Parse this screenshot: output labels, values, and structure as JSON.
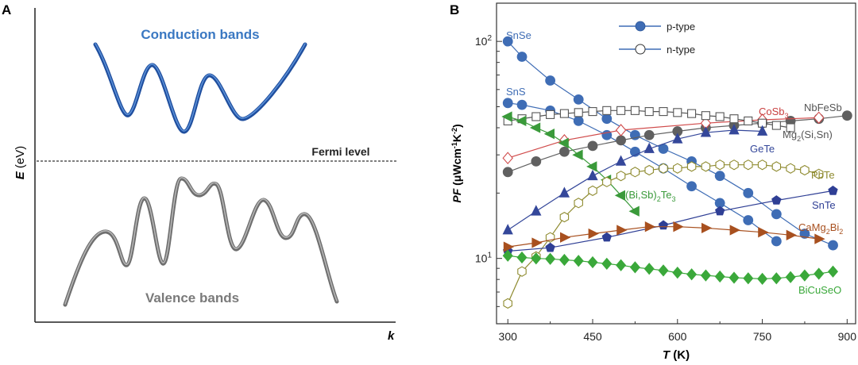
{
  "panel_a": {
    "label": "A",
    "conduction_label": "Conduction bands",
    "valence_label": "Valence bands",
    "fermi_label": "Fermi level",
    "y_axis_label_main": "E",
    "y_axis_label_unit": " (eV)",
    "x_axis_label": "k",
    "colors": {
      "conduction": "#1f4e9e",
      "conduction_light": "#5a8fd6",
      "valence": "#6e6e6e",
      "valence_light": "#a9a9a9"
    }
  },
  "panel_b": {
    "label": "B",
    "legend": {
      "p_type": "p-type",
      "n_type": "n-type"
    }
  },
  "chart_data": {
    "type": "line",
    "xlabel": "T (K)",
    "ylabel": "PF (μWcm⁻¹K⁻²)",
    "xlim": [
      280,
      915
    ],
    "ylim": [
      5,
      150
    ],
    "yscale": "log",
    "xticks": [
      300,
      450,
      600,
      750,
      900
    ],
    "yticks": [
      {
        "value": 10,
        "label": "10",
        "sup": "1"
      },
      {
        "value": 100,
        "label": "10",
        "sup": "2"
      }
    ],
    "grid": false,
    "legend_position": "top-center",
    "series": [
      {
        "name": "SnSe",
        "carrier": "p",
        "marker": "circle",
        "color": "#3f6db5",
        "label_color": "#3f6db5",
        "x": [
          300,
          325,
          375,
          425,
          475,
          525,
          575,
          625,
          675,
          725,
          775,
          825,
          875
        ],
        "y": [
          100,
          85,
          66,
          54,
          44,
          37,
          32,
          28,
          24,
          20,
          16,
          13,
          11.5
        ]
      },
      {
        "name": "SnS",
        "carrier": "p",
        "marker": "circle",
        "color": "#3f6db5",
        "label_color": "#3f6db5",
        "x": [
          300,
          325,
          375,
          425,
          475,
          525,
          575,
          625,
          675,
          725,
          775
        ],
        "y": [
          52,
          51,
          48,
          43,
          37,
          31,
          26,
          21.5,
          18,
          15,
          12
        ]
      },
      {
        "name": "NbFeSb",
        "carrier": "p",
        "marker": "circle",
        "color": "#606060",
        "label_color": "#555555",
        "x": [
          300,
          350,
          400,
          450,
          500,
          550,
          600,
          650,
          700,
          750,
          800,
          850,
          900
        ],
        "y": [
          25,
          28,
          31,
          33,
          35,
          37,
          38.5,
          40,
          41,
          42,
          43,
          44,
          45.5
        ]
      },
      {
        "name": "CoSb3",
        "carrier": "n",
        "marker": "diamond",
        "color": "#d04a4a",
        "label_color": "#c94040",
        "label_base": "CoSb",
        "label_sub": "3",
        "x": [
          300,
          400,
          500,
          650,
          750,
          850
        ],
        "y": [
          29,
          35,
          39,
          42,
          43.5,
          44.5
        ]
      },
      {
        "name": "Mg2(Si,Sn)",
        "carrier": "n",
        "marker": "square",
        "color": "#555555",
        "label_color": "#555555",
        "label_base": "Mg",
        "label_sub": "2",
        "label_rest": "(Si,Sn)",
        "x": [
          300,
          325,
          350,
          375,
          400,
          425,
          450,
          475,
          500,
          525,
          550,
          575,
          600,
          625,
          650,
          675,
          700,
          725,
          750,
          775,
          800
        ],
        "y": [
          43,
          44,
          45,
          46,
          46.5,
          47,
          47.5,
          48,
          48,
          48,
          47.5,
          47.5,
          47,
          46.5,
          45.5,
          45,
          44,
          43,
          42,
          41,
          40
        ]
      },
      {
        "name": "GeTe",
        "carrier": "p",
        "marker": "triangle-up",
        "color": "#34479a",
        "label_color": "#34479a",
        "x": [
          300,
          350,
          400,
          450,
          500,
          550,
          600,
          650,
          700,
          750
        ],
        "y": [
          13.5,
          16.5,
          20,
          24,
          28,
          32,
          35.5,
          38,
          39,
          38.5
        ]
      },
      {
        "name": "(Bi,Sb)2Te3",
        "carrier": "p",
        "marker": "triangle-left",
        "color": "#3a9a3a",
        "label_color": "#3a9a3a",
        "label_base": "(Bi,Sb)",
        "label_sub": "2",
        "label_rest": "Te",
        "label_sub2": "3",
        "x": [
          300,
          325,
          350,
          375,
          400,
          425,
          450,
          475,
          500,
          525
        ],
        "y": [
          45,
          43,
          40,
          37.5,
          34,
          30,
          26.5,
          23,
          19.5,
          16.5
        ]
      },
      {
        "name": "PbTe",
        "carrier": "n",
        "marker": "hexagon",
        "color": "#8e8a2e",
        "label_color": "#8e8a2e",
        "x": [
          300,
          325,
          350,
          375,
          400,
          425,
          450,
          475,
          500,
          525,
          550,
          575,
          600,
          625,
          650,
          675,
          700,
          725,
          750,
          775,
          800,
          825,
          850
        ],
        "y": [
          6.2,
          8.7,
          10.2,
          12.5,
          15.5,
          18,
          20.5,
          22.5,
          24,
          25,
          25.5,
          26,
          26,
          26.5,
          26.5,
          27,
          27,
          27,
          27,
          26.5,
          26,
          25.5,
          24.5
        ]
      },
      {
        "name": "SnTe",
        "carrier": "p",
        "marker": "pentagon",
        "color": "#2f3f95",
        "label_color": "#2f3f95",
        "x": [
          300,
          375,
          475,
          575,
          675,
          775,
          875
        ],
        "y": [
          10.8,
          11.2,
          12.5,
          14.2,
          16.5,
          18.5,
          20.5
        ]
      },
      {
        "name": "CaMg2Bi2",
        "carrier": "p",
        "marker": "triangle-right",
        "color": "#a8501f",
        "label_color": "#a8501f",
        "label_base": "CaMg",
        "label_sub": "2",
        "label_rest": "Bi",
        "label_sub2": "2",
        "x": [
          300,
          350,
          400,
          450,
          500,
          550,
          600,
          650,
          700,
          750,
          800,
          850
        ],
        "y": [
          11.3,
          11.8,
          12.5,
          13,
          13.5,
          14,
          14,
          13.8,
          13.5,
          13.2,
          12.8,
          12.3
        ]
      },
      {
        "name": "BiCuSeO",
        "carrier": "p",
        "marker": "diamond",
        "color": "#3aa83a",
        "label_color": "#3aa83a",
        "x": [
          300,
          325,
          350,
          375,
          400,
          425,
          450,
          475,
          500,
          525,
          550,
          575,
          600,
          625,
          650,
          675,
          700,
          725,
          750,
          775,
          800,
          825,
          850,
          875
        ],
        "y": [
          10.3,
          10.1,
          10,
          9.95,
          9.85,
          9.75,
          9.6,
          9.45,
          9.3,
          9.1,
          8.95,
          8.8,
          8.6,
          8.45,
          8.35,
          8.25,
          8.15,
          8.1,
          8.05,
          8.1,
          8.2,
          8.35,
          8.5,
          8.7
        ]
      }
    ]
  }
}
